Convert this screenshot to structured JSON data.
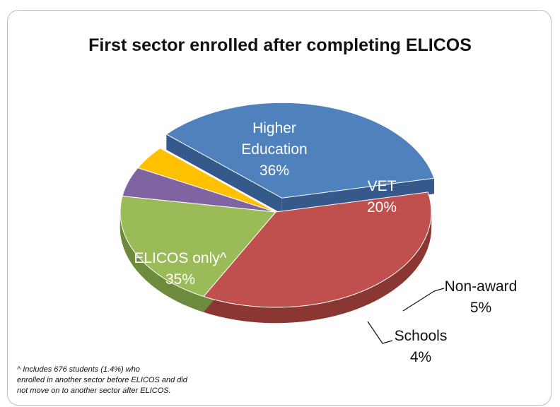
{
  "chart_data": {
    "type": "pie",
    "title": "First sector enrolled after completing ELICOS",
    "slices": [
      {
        "label_lines": [
          "ELICOS only^"
        ],
        "pct_label": "35%",
        "value": 35,
        "color": "#4f81bd",
        "side": "#35598a",
        "exploded": true
      },
      {
        "label_lines": [
          "Higher",
          "Education"
        ],
        "pct_label": "36%",
        "value": 36,
        "color": "#c0504d",
        "side": "#8a3633",
        "exploded": false
      },
      {
        "label_lines": [
          "VET"
        ],
        "pct_label": "20%",
        "value": 20,
        "color": "#9bbb59",
        "side": "#6e8a3c",
        "exploded": false
      },
      {
        "label_lines": [
          "Non-award"
        ],
        "pct_label": "5%",
        "value": 5,
        "color": "#8064a2",
        "side": "#5a4675",
        "exploded": false
      },
      {
        "label_lines": [
          "Schools"
        ],
        "pct_label": "4%",
        "value": 4,
        "color": "#ffc000",
        "side": "#b58600",
        "exploded": false
      }
    ],
    "footnote_lines": [
      "^ Includes 676 students (1.4%) who",
      "enrolled in another sector before ELICOS and did",
      "not move on to another sector after ELICOS."
    ]
  }
}
